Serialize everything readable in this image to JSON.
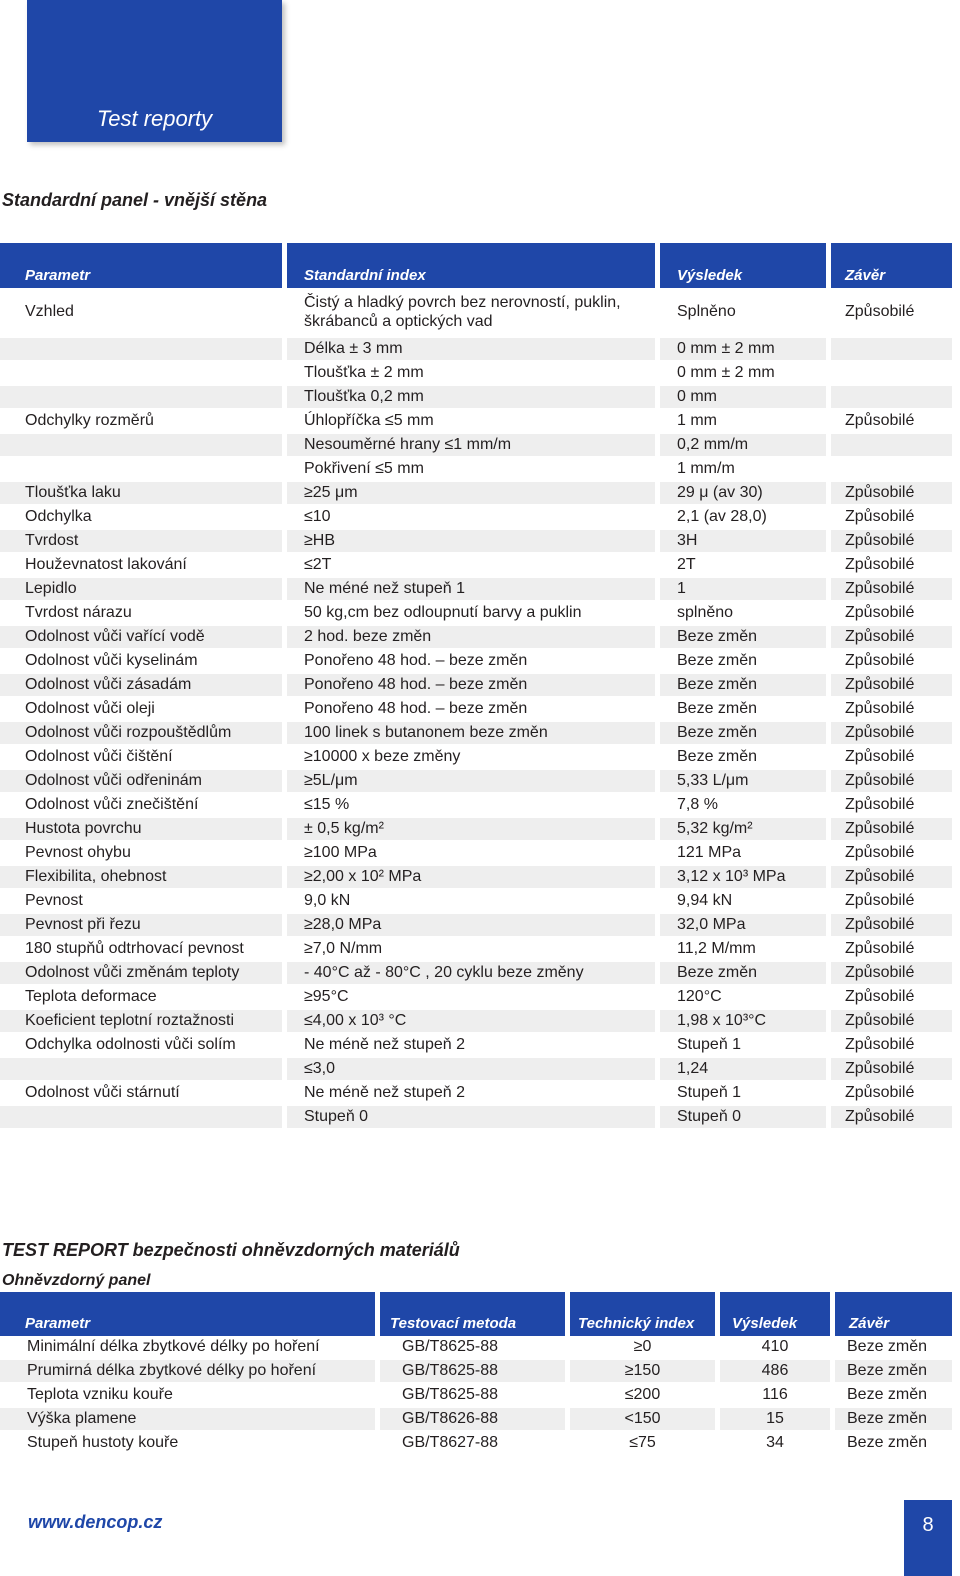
{
  "header": {
    "title": "Test reporty"
  },
  "section1": {
    "title": "Standardní panel - vnější stěna",
    "columns": [
      "Parametr",
      "Standardní index",
      "Výsledek",
      "Závěr"
    ],
    "rows": [
      [
        "Vzhled",
        "Čistý a hladký povrch bez nerovností, puklin, škrábanců a optických vad",
        "Splněno",
        "Způsobilé"
      ],
      [
        "",
        "Délka ± 3 mm",
        "0 mm ± 2 mm",
        ""
      ],
      [
        "",
        "Tloušťka ± 2 mm",
        "0 mm ± 2 mm",
        ""
      ],
      [
        "",
        "Tloušťka 0,2 mm",
        "0 mm",
        ""
      ],
      [
        "Odchylky rozměrů",
        "Úhlopříčka ≤5 mm",
        "1 mm",
        "Způsobilé"
      ],
      [
        "",
        "Nesouměrné hrany ≤1 mm/m",
        "0,2 mm/m",
        ""
      ],
      [
        "",
        "Pokřivení ≤5 mm",
        "1 mm/m",
        ""
      ],
      [
        "Tloušťka laku",
        "≥25 μm",
        "29 μ (av 30)",
        "Způsobilé"
      ],
      [
        "Odchylka",
        "≤10",
        "2,1 (av 28,0)",
        "Způsobilé"
      ],
      [
        "Tvrdost",
        "≥HB",
        "3H",
        "Způsobilé"
      ],
      [
        "Houževnatost lakování",
        "≤2T",
        "2T",
        "Způsobilé"
      ],
      [
        "Lepidlo",
        "Ne méné než stupeň 1",
        "1",
        "Způsobilé"
      ],
      [
        "Tvrdost nárazu",
        "50 kg,cm bez odloupnutí barvy a puklin",
        "splněno",
        "Způsobilé"
      ],
      [
        "Odolnost vůči vařící vodě",
        "2 hod. beze změn",
        "Beze změn",
        "Způsobilé"
      ],
      [
        "Odolnost vůči kyselinám",
        "Ponořeno 48 hod. – beze změn",
        "Beze změn",
        "Způsobilé"
      ],
      [
        "Odolnost vůči zásadám",
        "Ponořeno 48 hod. – beze změn",
        "Beze změn",
        "Způsobilé"
      ],
      [
        "Odolnost vůči oleji",
        "Ponořeno 48 hod. – beze změn",
        "Beze změn",
        "Způsobilé"
      ],
      [
        "Odolnost vůči rozpouštědlům",
        "100 linek s butanonem beze změn",
        "Beze změn",
        "Způsobilé"
      ],
      [
        "Odolnost vůči čištění",
        "≥10000 x beze změny",
        "Beze změn",
        "Způsobilé"
      ],
      [
        "Odolnost vůči odřeninám",
        "≥5L/μm",
        "5,33 L/μm",
        "Způsobilé"
      ],
      [
        "Odolnost vůči znečištění",
        "≤15 %",
        "7,8 %",
        "Způsobilé"
      ],
      [
        "Hustota povrchu",
        "± 0,5 kg/m²",
        "5,32 kg/m²",
        "Způsobilé"
      ],
      [
        "Pevnost ohybu",
        "≥100 MPa",
        "121 MPa",
        "Způsobilé"
      ],
      [
        "Flexibilita, ohebnost",
        "≥2,00 x 10² MPa",
        "3,12 x 10³ MPa",
        "Způsobilé"
      ],
      [
        "Pevnost",
        "9,0 kN",
        "9,94 kN",
        "Způsobilé"
      ],
      [
        "Pevnost při řezu",
        "≥28,0 MPa",
        "32,0 MPa",
        "Způsobilé"
      ],
      [
        "180 stupňů odtrhovací pevnost",
        "≥7,0 N/mm",
        "11,2 M/mm",
        "Způsobilé"
      ],
      [
        "Odolnost vůči změnám teploty",
        "- 40°C až - 80°C , 20 cyklu beze změny",
        "Beze změn",
        "Způsobilé"
      ],
      [
        "Teplota deformace",
        "≥95°C",
        "120°C",
        "Způsobilé"
      ],
      [
        "Koeficient teplotní roztažnosti",
        "≤4,00 x 10³ °C",
        "1,98 x 10³°C",
        "Způsobilé"
      ],
      [
        "Odchylka odolnosti vůči solím",
        "Ne méně než stupeň 2",
        "Stupeň 1",
        "Způsobilé"
      ],
      [
        "",
        "≤3,0",
        "1,24",
        "Způsobilé"
      ],
      [
        "Odolnost vůči stárnutí",
        "Ne méně než stupeň 2",
        "Stupeň 1",
        "Způsobilé"
      ],
      [
        "",
        "Stupeň 0",
        "Stupeň 0",
        "Způsobilé"
      ]
    ]
  },
  "section2": {
    "title": "TEST REPORT bezpečnosti ohněvzdorných materiálů",
    "subtitle": "Ohněvzdorný panel",
    "columns": [
      "Parametr",
      "Testovací metoda",
      "Technický index",
      "Výsledek",
      "Závěr"
    ],
    "rows": [
      [
        "Minimální délka zbytkové délky po hoření",
        "GB/T8625-88",
        "≥0",
        "410",
        "Beze změn"
      ],
      [
        "Prumirná délka zbytkové délky po hoření",
        "GB/T8625-88",
        "≥150",
        "486",
        "Beze změn"
      ],
      [
        "Teplota vzniku kouře",
        "GB/T8625-88",
        "≤200",
        "116",
        "Beze změn"
      ],
      [
        "Výška plamene",
        "GB/T8626-88",
        "<150",
        "15",
        "Beze změn"
      ],
      [
        "Stupeň hustoty kouře",
        "GB/T8627-88",
        "≤75",
        "34",
        "Beze změn"
      ]
    ]
  },
  "footer": {
    "url": "www.dencop.cz",
    "page": "8"
  }
}
